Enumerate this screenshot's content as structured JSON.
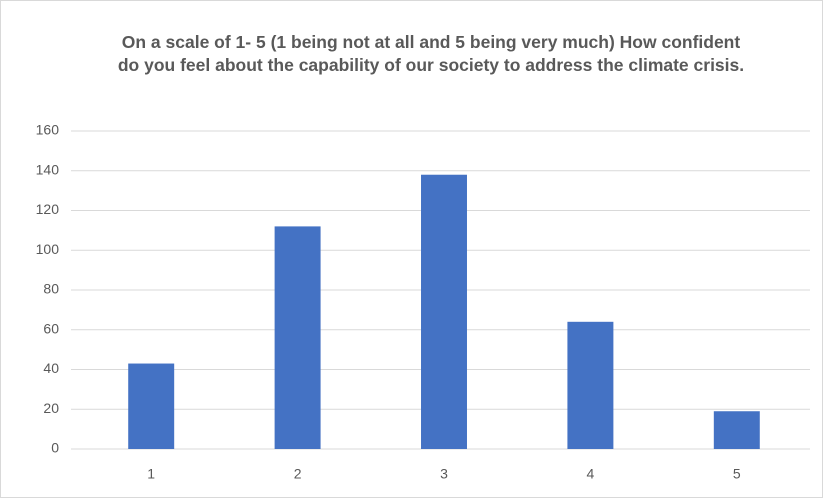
{
  "chart_data": {
    "type": "bar",
    "title": "On a scale of 1- 5 (1 being not at all and 5 being very much) How confident do you feel about the capability of our society to address the climate crisis.",
    "categories": [
      "1",
      "2",
      "3",
      "4",
      "5"
    ],
    "values": [
      43,
      112,
      138,
      64,
      19
    ],
    "color": "#4472c4",
    "ylim": [
      0,
      160
    ],
    "yticks": [
      0,
      20,
      40,
      60,
      80,
      100,
      120,
      140,
      160
    ],
    "grid": true
  }
}
